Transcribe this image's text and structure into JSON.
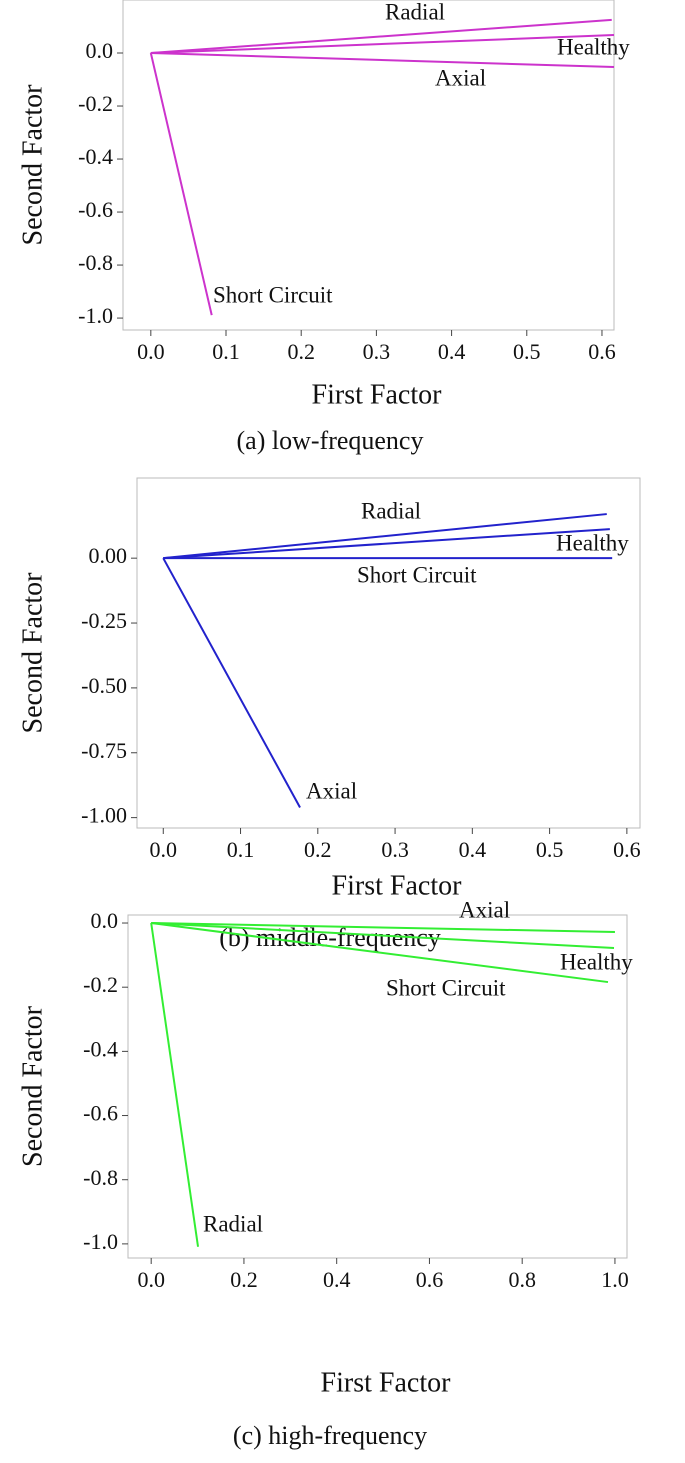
{
  "chart_data": [
    {
      "type": "line",
      "caption": "(a) low-frequency",
      "x_label": "First Factor",
      "y_label": "Second Factor",
      "xlim": [
        -0.037,
        0.616
      ],
      "ylim": [
        -1.045,
        0.2
      ],
      "xticks": [
        {
          "value": 0,
          "label": "0.0"
        },
        0.1,
        0.2,
        0.3,
        0.4,
        0.5,
        0.6
      ],
      "yticks": [
        {
          "value": 0,
          "label": "0.0"
        },
        -0.2,
        -0.4,
        -0.6,
        -0.8,
        {
          "value": -1,
          "label": "-1.0"
        }
      ],
      "series": [
        {
          "name": "Radial",
          "color": "#cc33cc",
          "x": [
            0,
            0.613
          ],
          "values": [
            0,
            0.125
          ]
        },
        {
          "name": "Healthy",
          "color": "#cc33cc",
          "x": [
            0,
            0.616
          ],
          "values": [
            0,
            0.068
          ]
        },
        {
          "name": "Axial",
          "color": "#cc33cc",
          "x": [
            0,
            0.616
          ],
          "values": [
            0,
            -0.053
          ]
        },
        {
          "name": "Short Circuit",
          "color": "#cc33cc",
          "x": [
            0,
            0.081
          ],
          "values": [
            0,
            -0.989
          ]
        }
      ]
    },
    {
      "type": "line",
      "caption": "(b) middle-frequency",
      "x_label": "First Factor",
      "y_label": "Second Factor",
      "xlim": [
        -0.034,
        0.617
      ],
      "ylim": [
        -1.04,
        0.309
      ],
      "xticks": [
        {
          "value": 0,
          "label": "0.0"
        },
        0.1,
        0.2,
        0.3,
        0.4,
        0.5,
        0.6
      ],
      "yticks": [
        {
          "value": 0,
          "label": "0.00"
        },
        -0.25,
        {
          "value": -0.5,
          "label": "-0.50"
        },
        -0.75,
        {
          "value": -1,
          "label": "-1.00"
        }
      ],
      "series": [
        {
          "name": "Radial",
          "color": "#2222cc",
          "x": [
            0,
            0.574
          ],
          "values": [
            0,
            0.17
          ]
        },
        {
          "name": "Healthy",
          "color": "#2222cc",
          "x": [
            0,
            0.578
          ],
          "values": [
            0,
            0.112
          ]
        },
        {
          "name": "Short Circuit",
          "color": "#2222cc",
          "x": [
            0,
            0.581
          ],
          "values": [
            0,
            0.0
          ]
        },
        {
          "name": "Axial",
          "color": "#2222cc",
          "x": [
            0,
            0.177
          ],
          "values": [
            0,
            -0.961
          ]
        }
      ]
    },
    {
      "type": "line",
      "caption": "(c) high-frequency",
      "x_label": "First Factor",
      "y_label": "Second Factor",
      "xlim": [
        -0.05,
        1.026
      ],
      "ylim": [
        -1.044,
        0.025
      ],
      "xticks": [
        {
          "value": 0,
          "label": "0.0"
        },
        0.2,
        0.4,
        0.6,
        0.8,
        {
          "value": 1,
          "label": "1.0"
        }
      ],
      "yticks": [
        {
          "value": 0,
          "label": "0.0"
        },
        -0.2,
        -0.4,
        -0.6,
        -0.8,
        {
          "value": -1,
          "label": "-1.0"
        }
      ],
      "series": [
        {
          "name": "Axial",
          "color": "#33ee33",
          "x": [
            0,
            1.0
          ],
          "values": [
            0,
            -0.028
          ]
        },
        {
          "name": "Healthy",
          "color": "#33ee33",
          "x": [
            0,
            0.998
          ],
          "values": [
            0,
            -0.078
          ]
        },
        {
          "name": "Short Circuit",
          "color": "#33ee33",
          "x": [
            0,
            0.985
          ],
          "values": [
            0,
            -0.184
          ]
        },
        {
          "name": "Radial",
          "color": "#33ee33",
          "x": [
            0,
            0.101
          ],
          "values": [
            0,
            -1.009
          ]
        }
      ]
    }
  ]
}
